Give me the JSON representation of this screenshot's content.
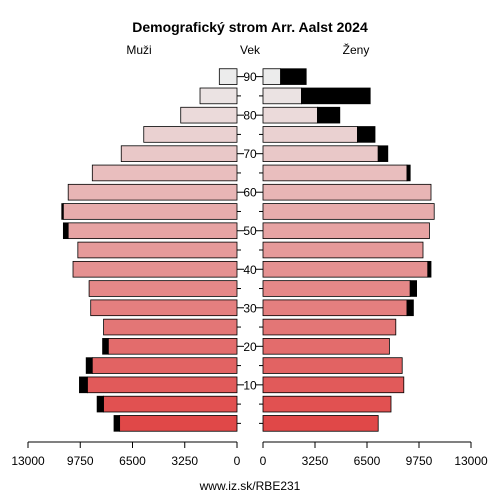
{
  "chart_data": {
    "type": "bar",
    "title": "Demografický strom Arr. Aalst 2024",
    "left_label": "Muži",
    "center_label": "Vek",
    "right_label": "Ženy",
    "footer": "www.iz.sk/RBE231",
    "age_groups": [
      "0-4",
      "5-9",
      "10-14",
      "15-19",
      "20-24",
      "25-29",
      "30-34",
      "35-39",
      "40-44",
      "45-49",
      "50-54",
      "55-59",
      "60-64",
      "65-69",
      "70-74",
      "75-79",
      "80-84",
      "85-89",
      "90+"
    ],
    "age_tick_labels": [
      "10",
      "20",
      "30",
      "40",
      "50",
      "60",
      "70",
      "80",
      "90"
    ],
    "x_tick_labels_left": [
      "13000",
      "9750",
      "6500",
      "3250",
      "0"
    ],
    "x_tick_labels_right": [
      "0",
      "3250",
      "6500",
      "9750",
      "13000"
    ],
    "xlim": [
      0,
      13000
    ],
    "series": [
      {
        "name": "Muži",
        "side": "left",
        "values": [
          7300,
          8300,
          9300,
          9000,
          8000,
          8300,
          9100,
          9200,
          10200,
          9900,
          10500,
          10800,
          10500,
          9000,
          7200,
          5800,
          3500,
          2300,
          1100
        ],
        "excess": [
          350,
          400,
          500,
          380,
          360,
          0,
          0,
          0,
          0,
          0,
          300,
          100,
          0,
          0,
          0,
          0,
          0,
          0,
          0
        ]
      },
      {
        "name": "Ženy",
        "side": "right",
        "values": [
          7200,
          8000,
          8800,
          8700,
          7900,
          8300,
          9000,
          9200,
          10300,
          10000,
          10400,
          10700,
          10500,
          9000,
          7200,
          5900,
          3400,
          2400,
          1100
        ],
        "excess": [
          0,
          0,
          0,
          0,
          0,
          0,
          400,
          400,
          200,
          0,
          0,
          0,
          0,
          200,
          600,
          1100,
          1400,
          4300,
          1600
        ]
      }
    ],
    "colors": {
      "young": "#e04848",
      "old": "#ececec",
      "excess": "#000000"
    }
  }
}
